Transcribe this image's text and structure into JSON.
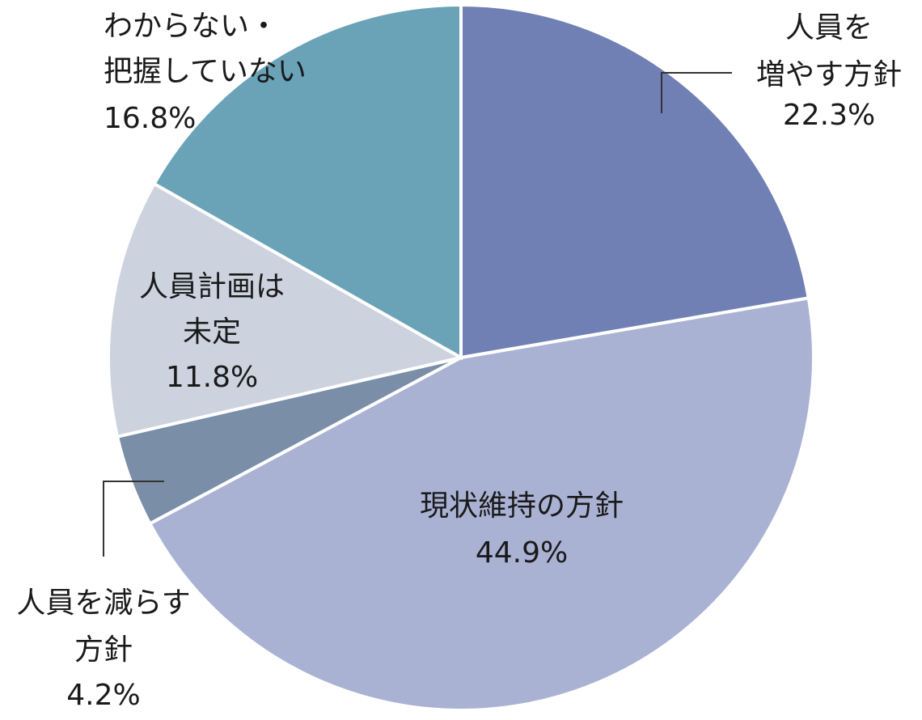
{
  "chart_data": {
    "type": "pie",
    "slices": [
      {
        "label_lines": [
          "人員を",
          "増やす方針"
        ],
        "value": 22.3,
        "value_label": "22.3%",
        "color": "#7080b4"
      },
      {
        "label_lines": [
          "現状維持の方針"
        ],
        "value": 44.9,
        "value_label": "44.9%",
        "color": "#aab2d4"
      },
      {
        "label_lines": [
          "人員を減らす",
          "方針"
        ],
        "value": 4.2,
        "value_label": "4.2%",
        "color": "#7a8ea8"
      },
      {
        "label_lines": [
          "人員計画は",
          "未定"
        ],
        "value": 11.8,
        "value_label": "11.8%",
        "color": "#ccd3df"
      },
      {
        "label_lines": [
          "わからない・",
          "把握していない"
        ],
        "value": 16.8,
        "value_label": "16.8%",
        "color": "#6aa3b8"
      }
    ]
  }
}
